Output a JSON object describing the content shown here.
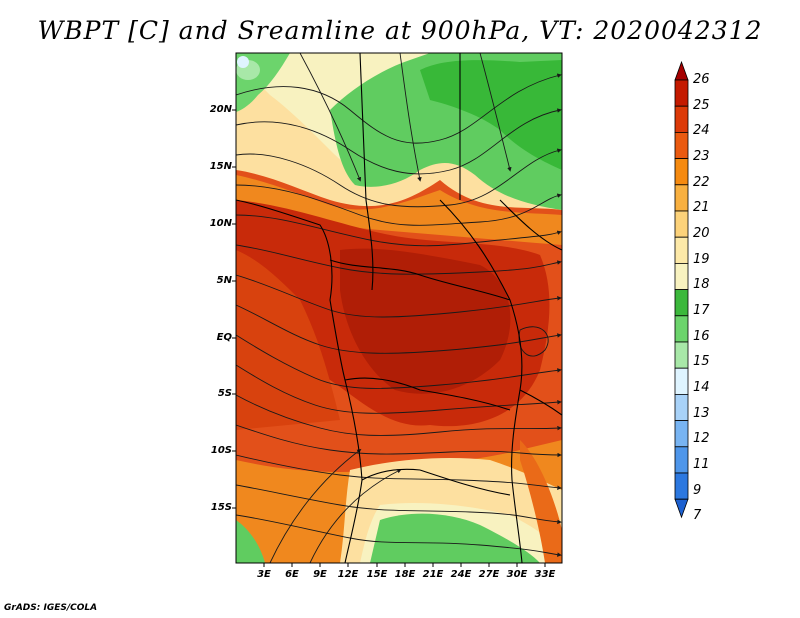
{
  "title": "WBPT [C] and Sreamline at 900hPa, VT: 2020042312",
  "footer": "GrADS: IGES/COLA",
  "lat_labels": [
    "20N",
    "15N",
    "10N",
    "5N",
    "EQ",
    "5S",
    "10S",
    "15S"
  ],
  "lon_labels": [
    "3E",
    "6E",
    "9E",
    "12E",
    "15E",
    "18E",
    "21E",
    "24E",
    "27E",
    "30E",
    "33E"
  ],
  "colorbar": {
    "labels": [
      "26",
      "25",
      "24",
      "23",
      "22",
      "21",
      "20",
      "19",
      "18",
      "17",
      "16",
      "15",
      "14",
      "13",
      "12",
      "11",
      "9",
      "7"
    ],
    "colors": [
      "#a50000",
      "#c41a00",
      "#dc3a08",
      "#ea5a10",
      "#f58a10",
      "#f8b040",
      "#fcd27a",
      "#fde9a8",
      "#f8f2c0",
      "#3cb83c",
      "#6cd46c",
      "#a8e8a8",
      "#dff4ff",
      "#a8d2f8",
      "#78b4f2",
      "#4e96ea",
      "#2c78e0",
      "#1c60d0"
    ]
  },
  "colors": {
    "warm_core": "#c82a0a",
    "warm": "#e2501a",
    "orange": "#f0881e",
    "yellow": "#fde0a0",
    "green": "#60cc60",
    "dark_green": "#38b838",
    "streamline": "#1a1a1a"
  }
}
